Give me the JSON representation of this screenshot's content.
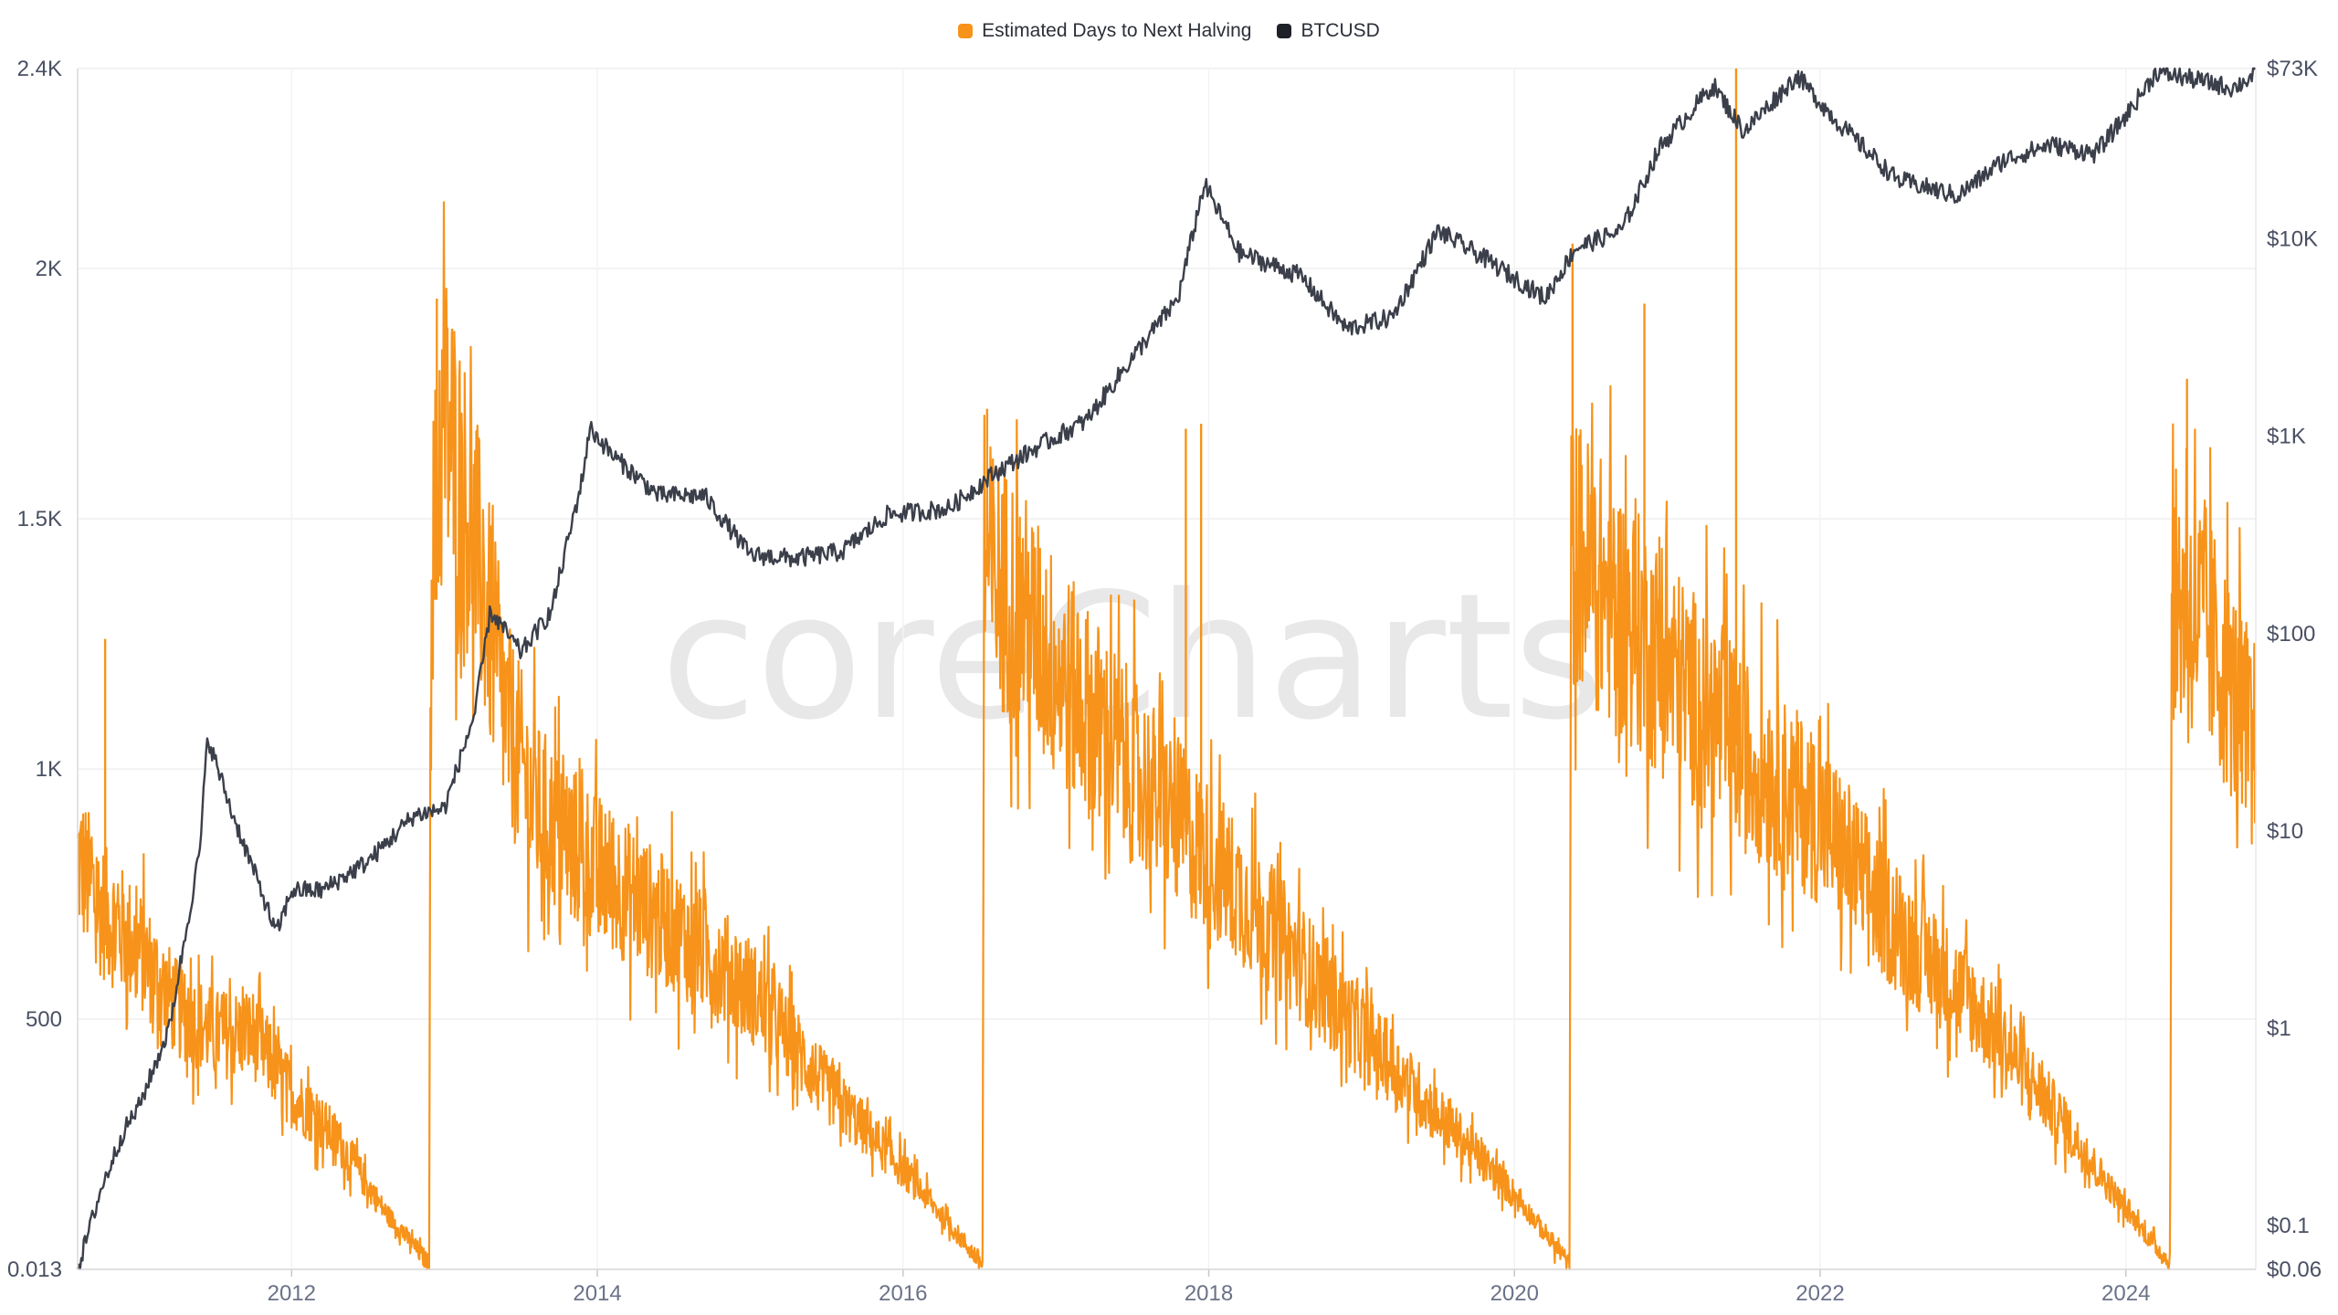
{
  "watermark": "coreCharts",
  "legend": {
    "items": [
      {
        "label": "Estimated Days to Next Halving",
        "color": "#f7931a"
      },
      {
        "label": "BTCUSD",
        "color": "#1e2128"
      }
    ]
  },
  "chart_data": {
    "type": "line",
    "title": "",
    "x_axis": {
      "type": "time",
      "range": [
        2010.6,
        2024.85
      ],
      "ticks": [
        "2012",
        "2014",
        "2016",
        "2018",
        "2020",
        "2022",
        "2024"
      ],
      "tick_values": [
        2012,
        2014,
        2016,
        2018,
        2020,
        2022,
        2024
      ]
    },
    "y_left": {
      "label": "",
      "range": [
        0.013,
        2400
      ],
      "ticks": [
        "0.013",
        "500",
        "1K",
        "1.5K",
        "2K",
        "2.4K"
      ],
      "tick_values": [
        0.013,
        500,
        1000,
        1500,
        2000,
        2400
      ]
    },
    "y_right": {
      "label": "",
      "scale": "log",
      "range": [
        0.06,
        73000
      ],
      "ticks": [
        "$0.06",
        "$0.1",
        "$1",
        "$10",
        "$100",
        "$1K",
        "$10K",
        "$73K"
      ],
      "tick_values": [
        0.06,
        0.1,
        1,
        10,
        100,
        1000,
        10000,
        73000
      ]
    },
    "grid": true,
    "legend_position": "top-center",
    "series": [
      {
        "name": "Estimated Days to Next Halving",
        "axis": "left",
        "color": "#f7931a",
        "noise": 0.12,
        "points": [
          {
            "x": 2010.6,
            "y": 820
          },
          {
            "x": 2010.75,
            "y": 720
          },
          {
            "x": 2011.0,
            "y": 640
          },
          {
            "x": 2011.25,
            "y": 520
          },
          {
            "x": 2011.5,
            "y": 470
          },
          {
            "x": 2011.75,
            "y": 470
          },
          {
            "x": 2012.0,
            "y": 350
          },
          {
            "x": 2012.3,
            "y": 260
          },
          {
            "x": 2012.6,
            "y": 120
          },
          {
            "x": 2012.9,
            "y": 10
          },
          {
            "x": 2012.91,
            "y": 1400
          },
          {
            "x": 2013.0,
            "y": 1700
          },
          {
            "x": 2013.2,
            "y": 1450
          },
          {
            "x": 2013.4,
            "y": 1100
          },
          {
            "x": 2013.6,
            "y": 920
          },
          {
            "x": 2014.0,
            "y": 800
          },
          {
            "x": 2014.5,
            "y": 680
          },
          {
            "x": 2015.0,
            "y": 560
          },
          {
            "x": 2015.5,
            "y": 360
          },
          {
            "x": 2016.0,
            "y": 200
          },
          {
            "x": 2016.3,
            "y": 90
          },
          {
            "x": 2016.52,
            "y": 10
          },
          {
            "x": 2016.53,
            "y": 1400
          },
          {
            "x": 2016.7,
            "y": 1350
          },
          {
            "x": 2017.0,
            "y": 1200
          },
          {
            "x": 2017.5,
            "y": 1000
          },
          {
            "x": 2018.0,
            "y": 820
          },
          {
            "x": 2018.5,
            "y": 650
          },
          {
            "x": 2019.0,
            "y": 470
          },
          {
            "x": 2019.5,
            "y": 310
          },
          {
            "x": 2020.0,
            "y": 150
          },
          {
            "x": 2020.36,
            "y": 10
          },
          {
            "x": 2020.37,
            "y": 1450
          },
          {
            "x": 2020.6,
            "y": 1350
          },
          {
            "x": 2021.0,
            "y": 1200
          },
          {
            "x": 2021.5,
            "y": 1030
          },
          {
            "x": 2022.0,
            "y": 900
          },
          {
            "x": 2022.5,
            "y": 680
          },
          {
            "x": 2023.0,
            "y": 530
          },
          {
            "x": 2023.5,
            "y": 330
          },
          {
            "x": 2024.0,
            "y": 120
          },
          {
            "x": 2024.29,
            "y": 10
          },
          {
            "x": 2024.3,
            "y": 1350
          },
          {
            "x": 2024.5,
            "y": 1300
          },
          {
            "x": 2024.7,
            "y": 1150
          },
          {
            "x": 2024.85,
            "y": 1050
          }
        ],
        "spikes": [
          {
            "x": 2010.78,
            "y": 1260
          },
          {
            "x": 2012.95,
            "y": 1940
          },
          {
            "x": 2013.05,
            "y": 1880
          },
          {
            "x": 2016.55,
            "y": 1720
          },
          {
            "x": 2017.85,
            "y": 1680
          },
          {
            "x": 2017.95,
            "y": 1690
          },
          {
            "x": 2020.38,
            "y": 2050
          },
          {
            "x": 2020.85,
            "y": 1930
          },
          {
            "x": 2021.45,
            "y": 2400
          },
          {
            "x": 2024.4,
            "y": 1780
          }
        ]
      },
      {
        "name": "BTCUSD",
        "axis": "right",
        "color": "#3b3f4a",
        "noise": 0.08,
        "points": [
          {
            "x": 2010.6,
            "y": 0.06
          },
          {
            "x": 2010.75,
            "y": 0.15
          },
          {
            "x": 2010.9,
            "y": 0.3
          },
          {
            "x": 2011.0,
            "y": 0.4
          },
          {
            "x": 2011.2,
            "y": 1.0
          },
          {
            "x": 2011.4,
            "y": 8
          },
          {
            "x": 2011.45,
            "y": 30
          },
          {
            "x": 2011.6,
            "y": 13
          },
          {
            "x": 2011.8,
            "y": 5
          },
          {
            "x": 2011.9,
            "y": 3
          },
          {
            "x": 2012.0,
            "y": 5
          },
          {
            "x": 2012.2,
            "y": 5
          },
          {
            "x": 2012.5,
            "y": 7
          },
          {
            "x": 2012.8,
            "y": 12
          },
          {
            "x": 2013.0,
            "y": 13
          },
          {
            "x": 2013.2,
            "y": 40
          },
          {
            "x": 2013.3,
            "y": 130
          },
          {
            "x": 2013.5,
            "y": 80
          },
          {
            "x": 2013.7,
            "y": 130
          },
          {
            "x": 2013.9,
            "y": 600
          },
          {
            "x": 2013.95,
            "y": 1100
          },
          {
            "x": 2014.1,
            "y": 800
          },
          {
            "x": 2014.4,
            "y": 500
          },
          {
            "x": 2014.7,
            "y": 500
          },
          {
            "x": 2015.0,
            "y": 250
          },
          {
            "x": 2015.3,
            "y": 240
          },
          {
            "x": 2015.6,
            "y": 260
          },
          {
            "x": 2015.9,
            "y": 400
          },
          {
            "x": 2016.3,
            "y": 430
          },
          {
            "x": 2016.6,
            "y": 650
          },
          {
            "x": 2016.9,
            "y": 900
          },
          {
            "x": 2017.2,
            "y": 1200
          },
          {
            "x": 2017.5,
            "y": 2500
          },
          {
            "x": 2017.8,
            "y": 5000
          },
          {
            "x": 2017.97,
            "y": 19000
          },
          {
            "x": 2018.2,
            "y": 8500
          },
          {
            "x": 2018.6,
            "y": 6500
          },
          {
            "x": 2018.9,
            "y": 3500
          },
          {
            "x": 2019.2,
            "y": 4000
          },
          {
            "x": 2019.5,
            "y": 11000
          },
          {
            "x": 2019.8,
            "y": 8000
          },
          {
            "x": 2020.2,
            "y": 5000
          },
          {
            "x": 2020.4,
            "y": 9000
          },
          {
            "x": 2020.7,
            "y": 11000
          },
          {
            "x": 2020.95,
            "y": 29000
          },
          {
            "x": 2021.3,
            "y": 60000
          },
          {
            "x": 2021.5,
            "y": 35000
          },
          {
            "x": 2021.85,
            "y": 67000
          },
          {
            "x": 2022.1,
            "y": 40000
          },
          {
            "x": 2022.5,
            "y": 20000
          },
          {
            "x": 2022.9,
            "y": 16500
          },
          {
            "x": 2023.2,
            "y": 25000
          },
          {
            "x": 2023.5,
            "y": 30000
          },
          {
            "x": 2023.8,
            "y": 27000
          },
          {
            "x": 2024.0,
            "y": 42000
          },
          {
            "x": 2024.2,
            "y": 70000
          },
          {
            "x": 2024.5,
            "y": 63000
          },
          {
            "x": 2024.7,
            "y": 58000
          },
          {
            "x": 2024.85,
            "y": 68000
          }
        ]
      }
    ]
  }
}
